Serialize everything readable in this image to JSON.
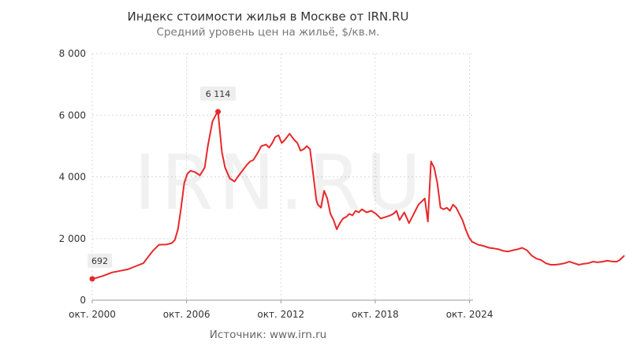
{
  "chart_data": {
    "type": "line",
    "title": "Индекс стоимости жилья в Москве от IRN.RU",
    "subtitle": "Средний уровень цен на жильё, $/кв.м.",
    "source": "Источник:  www.irn.ru",
    "watermark": "IRN.RU",
    "xlabel": "",
    "ylabel": "",
    "ylim": [
      0,
      8000
    ],
    "yticks": [
      {
        "value": 0,
        "label": "0"
      },
      {
        "value": 2000,
        "label": "2 000"
      },
      {
        "value": 4000,
        "label": "4 000"
      },
      {
        "value": 6000,
        "label": "6 000"
      },
      {
        "value": 8000,
        "label": "8 000"
      }
    ],
    "xlim": [
      2000.75,
      2034.6
    ],
    "xticks": [
      {
        "value": 2000.75,
        "label": "окт. 2000"
      },
      {
        "value": 2006.75,
        "label": "окт. 2006"
      },
      {
        "value": 2012.75,
        "label": "окт. 2012"
      },
      {
        "value": 2018.75,
        "label": "окт. 2018"
      },
      {
        "value": 2024.75,
        "label": "окт. 2024"
      }
    ],
    "grid": true,
    "line_color": "#e8282b",
    "annotations": [
      {
        "x": 2000.75,
        "y": 692,
        "label": "692"
      },
      {
        "x": 2008.75,
        "y": 6114,
        "label": "6 114"
      }
    ],
    "series": [
      {
        "x": [
          2000.75,
          2001,
          2001.5,
          2002,
          2002.5,
          2003,
          2003.5,
          2004,
          2004.3,
          2004.6,
          2005,
          2005.5,
          2005.8,
          2006,
          2006.2,
          2006.4,
          2006.6,
          2006.8,
          2007,
          2007.3,
          2007.6,
          2007.9,
          2008.1,
          2008.4,
          2008.6,
          2008.75,
          2009,
          2009.2,
          2009.5,
          2009.8,
          2010,
          2010.3,
          2010.6,
          2010.8,
          2011,
          2011.3,
          2011.5,
          2011.8,
          2012,
          2012.2,
          2012.4,
          2012.6,
          2012.8,
          2013,
          2013.3,
          2013.6,
          2013.8,
          2014,
          2014.2,
          2014.4,
          2014.6,
          2014.8,
          2015,
          2015.1,
          2015.3,
          2015.5,
          2015.7,
          2015.9,
          2016.1,
          2016.3,
          2016.5,
          2016.7,
          2016.9,
          2017.1,
          2017.3,
          2017.5,
          2017.7,
          2017.9,
          2018.2,
          2018.5,
          2018.8,
          2019.1,
          2019.4,
          2019.7,
          2019.9,
          2020.1,
          2020.3,
          2020.6,
          2020.9,
          2021.1,
          2021.3,
          2021.5,
          2021.7,
          2021.9,
          2022.1,
          2022.3,
          2022.5,
          2022.7,
          2022.9,
          2023.1,
          2023.3,
          2023.5,
          2023.7,
          2023.9,
          2024.1,
          2024.3,
          2024.5,
          2024.7,
          2024.9,
          2025.1,
          2025.3,
          2025.5,
          2025.7,
          2026,
          2026.3,
          2026.6,
          2026.9,
          2027.2,
          2027.5,
          2027.8,
          2028.1,
          2028.4,
          2028.7,
          2029,
          2029.3,
          2029.6,
          2029.9,
          2030.2,
          2030.5,
          2030.8,
          2031.1,
          2031.4,
          2031.7,
          2032,
          2032.3,
          2032.6,
          2032.9,
          2033.2,
          2033.5,
          2033.8,
          2034.1,
          2034.3,
          2034.5,
          2034.6
        ],
        "values": [
          692,
          720,
          800,
          900,
          950,
          1000,
          1100,
          1200,
          1400,
          1600,
          1800,
          1810,
          1850,
          1950,
          2300,
          3000,
          3800,
          4100,
          4200,
          4150,
          4050,
          4300,
          5000,
          5800,
          6000,
          6114,
          4800,
          4300,
          3950,
          3850,
          4000,
          4200,
          4400,
          4500,
          4550,
          4800,
          5000,
          5050,
          4950,
          5100,
          5300,
          5350,
          5100,
          5200,
          5400,
          5200,
          5100,
          4850,
          4900,
          5000,
          4900,
          4100,
          3250,
          3100,
          3000,
          3550,
          3300,
          2800,
          2600,
          2300,
          2500,
          2650,
          2700,
          2800,
          2750,
          2900,
          2850,
          2950,
          2850,
          2900,
          2800,
          2650,
          2700,
          2750,
          2800,
          2900,
          2600,
          2850,
          2500,
          2700,
          2900,
          3100,
          3200,
          3300,
          2550,
          4500,
          4300,
          3800,
          3000,
          2950,
          3000,
          2900,
          3100,
          3000,
          2800,
          2600,
          2300,
          2050,
          1900,
          1850,
          1800,
          1780,
          1750,
          1700,
          1680,
          1650,
          1600,
          1580,
          1620,
          1650,
          1700,
          1620,
          1450,
          1350,
          1300,
          1200,
          1150,
          1150,
          1170,
          1200,
          1250,
          1200,
          1150,
          1180,
          1200,
          1250,
          1230,
          1250,
          1280,
          1260,
          1250,
          1300,
          1400,
          1450
        ]
      }
    ]
  }
}
